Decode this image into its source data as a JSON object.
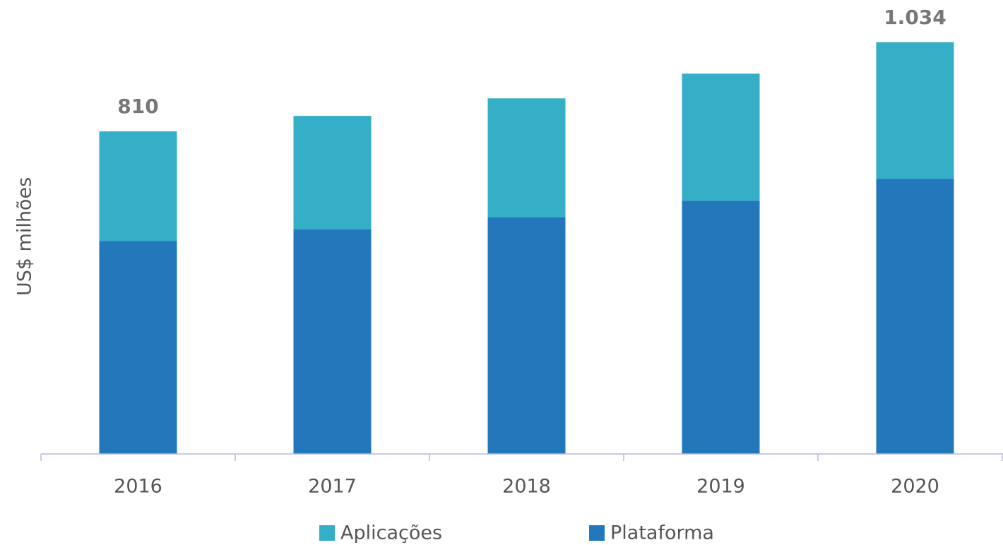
{
  "chart_data": {
    "type": "bar",
    "stacked": true,
    "y_label": "US$ milhões",
    "categories": [
      "2016",
      "2017",
      "2018",
      "2019",
      "2020"
    ],
    "series": [
      {
        "name": "Aplicações",
        "color": "#35aec7",
        "values": [
          275,
          285,
          299,
          319,
          343
        ]
      },
      {
        "name": "Plataforma",
        "color": "#2378bc",
        "values": [
          535,
          564,
          594,
          636,
          691
        ]
      }
    ],
    "annotations": [
      {
        "category": "2016",
        "value": 810,
        "label": "810"
      },
      {
        "category": "2020",
        "value": 1034,
        "label": "1.034"
      }
    ],
    "ylim": [
      0,
      1140
    ],
    "grid": false
  }
}
